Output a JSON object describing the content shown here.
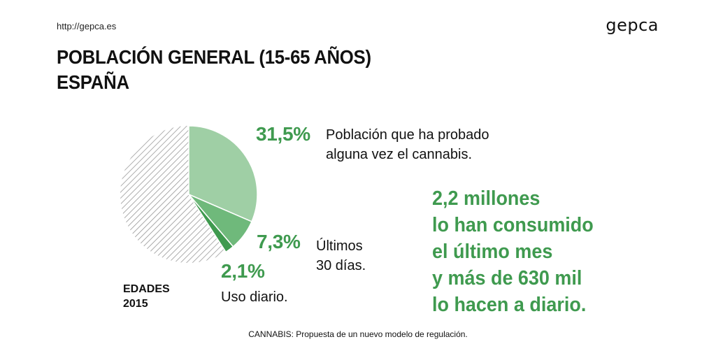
{
  "header": {
    "url": "http://gepca.es",
    "logo": "gepca"
  },
  "title": {
    "line1": "POBLACIÓN GENERAL (15-65 AÑOS)",
    "line2": "ESPAÑA"
  },
  "chart_data": {
    "type": "pie",
    "slices": [
      {
        "label": "Población que ha probado alguna vez el cannabis.",
        "value": 31.5,
        "display": "31,5%",
        "color": "#9fcfa5"
      },
      {
        "label": "Últimos 30 días.",
        "value": 7.3,
        "display": "7,3%",
        "color": "#6fb97b"
      },
      {
        "label": "Uso diario.",
        "value": 2.1,
        "display": "2,1%",
        "color": "#3f9a4f"
      }
    ],
    "remainder_fill": "hatched",
    "annotations": {
      "a": {
        "pct": "31,5%",
        "line1": "Población que ha probado",
        "line2": "alguna vez el cannabis."
      },
      "b": {
        "pct": "7,3%",
        "line1": "Últimos",
        "line2": "30 días."
      },
      "c": {
        "pct": "2,1%",
        "line1": "Uso diario."
      }
    },
    "edades": {
      "line1": "EDADES",
      "line2": "2015"
    }
  },
  "callout": {
    "lines": [
      "2,2 millones",
      "lo han consumido",
      "el último mes",
      "y más de 630 mil",
      "lo hacen a diario."
    ]
  },
  "footer": "CANNABIS: Propuesta de un nuevo modelo de regulación.",
  "colors": {
    "accent": "#3f9a4f",
    "light": "#9fcfa5",
    "mid": "#6fb97b",
    "hatch": "#8a8a8a"
  }
}
